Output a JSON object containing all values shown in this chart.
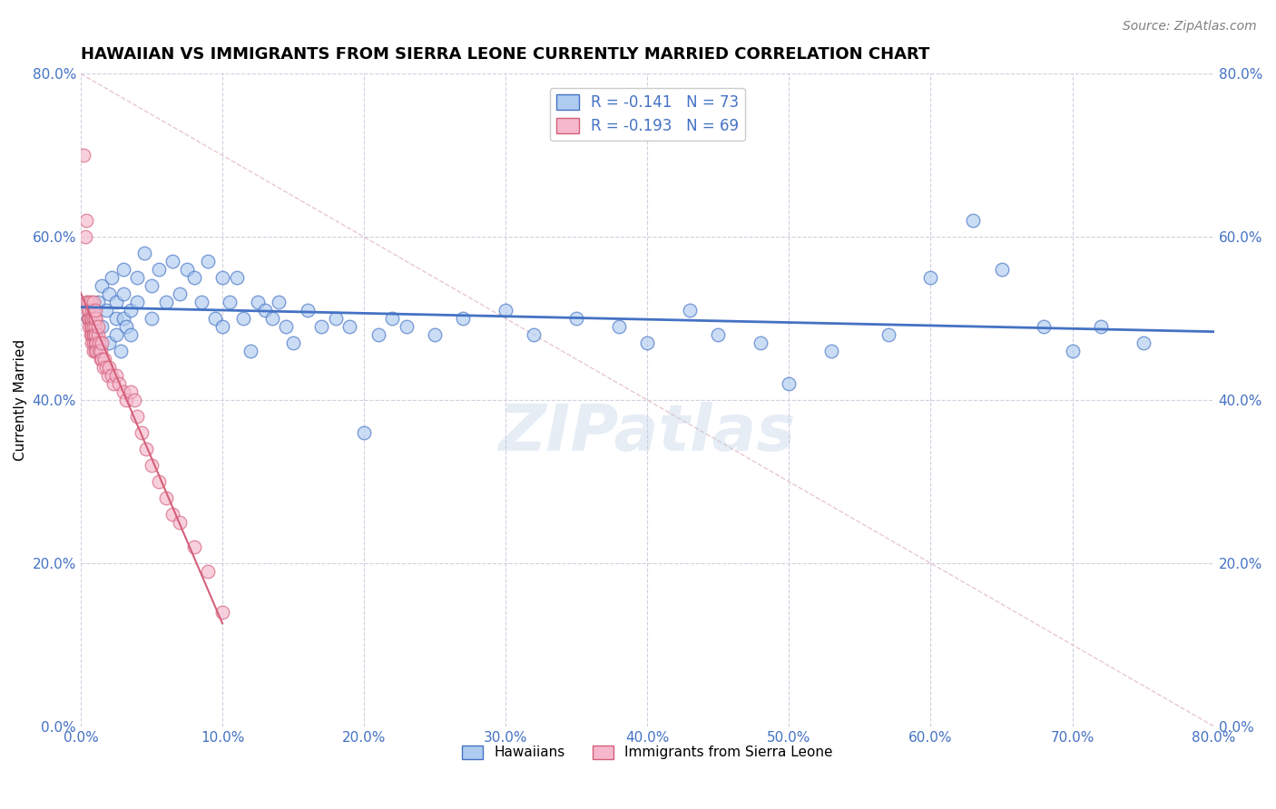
{
  "title": "HAWAIIAN VS IMMIGRANTS FROM SIERRA LEONE CURRENTLY MARRIED CORRELATION CHART",
  "source": "Source: ZipAtlas.com",
  "ylabel": "Currently Married",
  "xlim": [
    0.0,
    0.8
  ],
  "ylim": [
    0.0,
    0.8
  ],
  "watermark": "ZIPatlas",
  "legend_entry1": "R = -0.141   N = 73",
  "legend_entry2": "R = -0.193   N = 69",
  "legend_label1": "Hawaiians",
  "legend_label2": "Immigrants from Sierra Leone",
  "blue_scatter_color": "#aecbf0",
  "pink_scatter_color": "#f5b8cc",
  "blue_line_color": "#4472c4",
  "pink_line_color": "#d4607a",
  "dashed_line_color": "#e8c8d0",
  "tick_color": "#4472c4",
  "grid_color": "#d0d0e0",
  "background_color": "#ffffff",
  "title_fontsize": 13,
  "axis_label_fontsize": 11,
  "tick_fontsize": 11,
  "blue_x": [
    0.005,
    0.01,
    0.012,
    0.015,
    0.015,
    0.018,
    0.02,
    0.02,
    0.022,
    0.025,
    0.025,
    0.025,
    0.028,
    0.03,
    0.03,
    0.03,
    0.032,
    0.035,
    0.035,
    0.04,
    0.04,
    0.045,
    0.05,
    0.05,
    0.055,
    0.06,
    0.065,
    0.07,
    0.075,
    0.08,
    0.085,
    0.09,
    0.095,
    0.1,
    0.1,
    0.105,
    0.11,
    0.115,
    0.12,
    0.125,
    0.13,
    0.135,
    0.14,
    0.145,
    0.15,
    0.16,
    0.17,
    0.18,
    0.19,
    0.2,
    0.21,
    0.22,
    0.23,
    0.25,
    0.27,
    0.3,
    0.32,
    0.35,
    0.38,
    0.4,
    0.43,
    0.45,
    0.48,
    0.5,
    0.53,
    0.57,
    0.6,
    0.63,
    0.65,
    0.68,
    0.7,
    0.72,
    0.75
  ],
  "blue_y": [
    0.5,
    0.48,
    0.52,
    0.54,
    0.49,
    0.51,
    0.53,
    0.47,
    0.55,
    0.5,
    0.48,
    0.52,
    0.46,
    0.5,
    0.53,
    0.56,
    0.49,
    0.51,
    0.48,
    0.55,
    0.52,
    0.58,
    0.5,
    0.54,
    0.56,
    0.52,
    0.57,
    0.53,
    0.56,
    0.55,
    0.52,
    0.57,
    0.5,
    0.55,
    0.49,
    0.52,
    0.55,
    0.5,
    0.46,
    0.52,
    0.51,
    0.5,
    0.52,
    0.49,
    0.47,
    0.51,
    0.49,
    0.5,
    0.49,
    0.36,
    0.48,
    0.5,
    0.49,
    0.48,
    0.5,
    0.51,
    0.48,
    0.5,
    0.49,
    0.47,
    0.51,
    0.48,
    0.47,
    0.42,
    0.46,
    0.48,
    0.55,
    0.62,
    0.56,
    0.49,
    0.46,
    0.49,
    0.47
  ],
  "pink_x": [
    0.002,
    0.003,
    0.004,
    0.004,
    0.005,
    0.005,
    0.005,
    0.006,
    0.006,
    0.006,
    0.007,
    0.007,
    0.007,
    0.007,
    0.008,
    0.008,
    0.008,
    0.008,
    0.008,
    0.009,
    0.009,
    0.009,
    0.009,
    0.009,
    0.009,
    0.009,
    0.009,
    0.01,
    0.01,
    0.01,
    0.01,
    0.01,
    0.01,
    0.01,
    0.01,
    0.011,
    0.011,
    0.012,
    0.012,
    0.013,
    0.013,
    0.014,
    0.014,
    0.015,
    0.015,
    0.016,
    0.017,
    0.018,
    0.019,
    0.02,
    0.022,
    0.023,
    0.025,
    0.027,
    0.03,
    0.032,
    0.035,
    0.038,
    0.04,
    0.043,
    0.046,
    0.05,
    0.055,
    0.06,
    0.065,
    0.07,
    0.08,
    0.09,
    0.1
  ],
  "pink_y": [
    0.7,
    0.6,
    0.62,
    0.52,
    0.5,
    0.51,
    0.52,
    0.49,
    0.5,
    0.51,
    0.52,
    0.48,
    0.49,
    0.5,
    0.51,
    0.47,
    0.48,
    0.49,
    0.5,
    0.51,
    0.52,
    0.48,
    0.5,
    0.49,
    0.47,
    0.48,
    0.46,
    0.5,
    0.48,
    0.49,
    0.47,
    0.46,
    0.48,
    0.5,
    0.51,
    0.47,
    0.46,
    0.48,
    0.49,
    0.47,
    0.46,
    0.45,
    0.46,
    0.47,
    0.45,
    0.44,
    0.45,
    0.44,
    0.43,
    0.44,
    0.43,
    0.42,
    0.43,
    0.42,
    0.41,
    0.4,
    0.41,
    0.4,
    0.38,
    0.36,
    0.34,
    0.32,
    0.3,
    0.28,
    0.26,
    0.25,
    0.22,
    0.19,
    0.14
  ]
}
